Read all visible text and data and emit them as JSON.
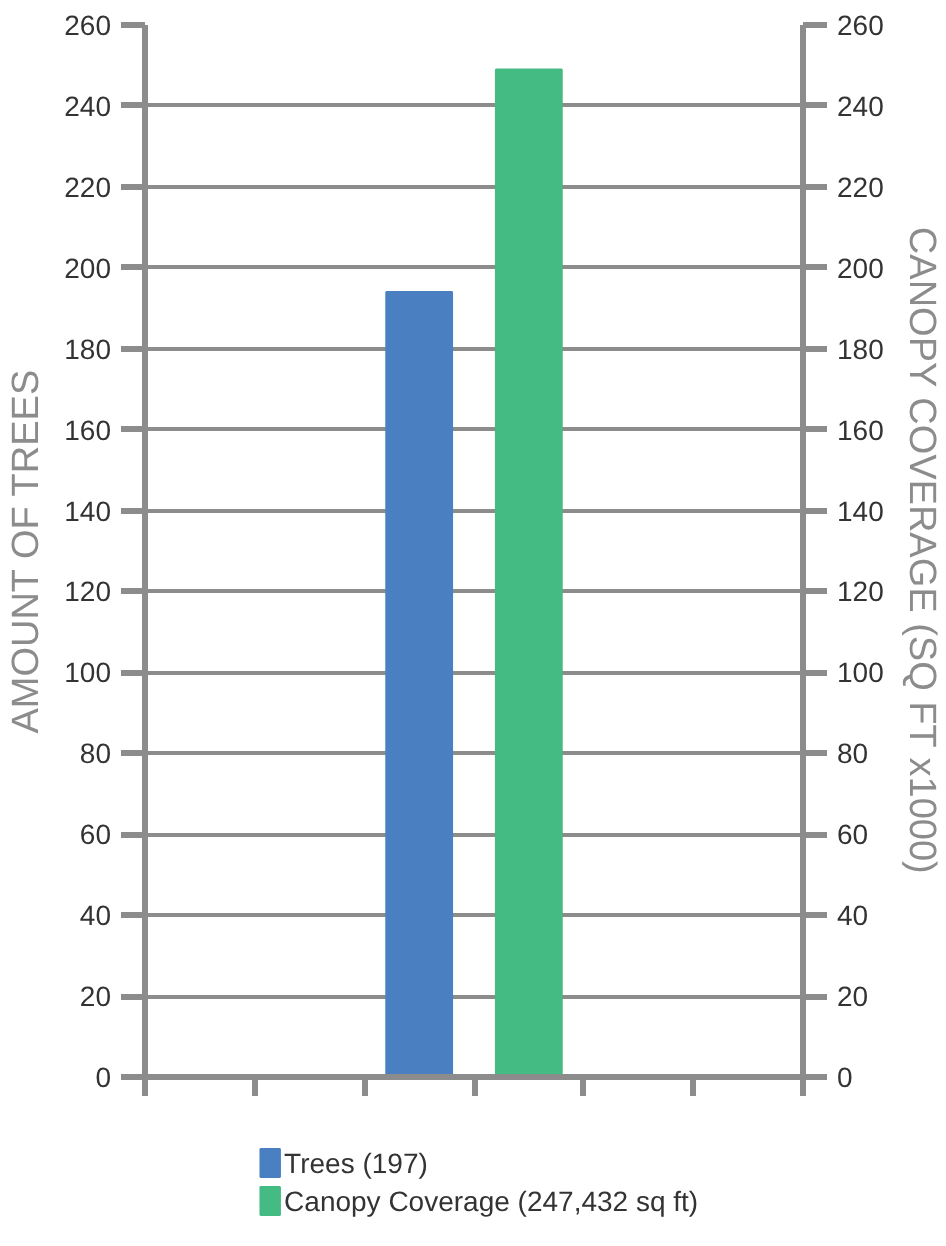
{
  "chart_data": {
    "type": "bar",
    "ylabel": "AMOUNT OF TREES",
    "y2label": "CANOPY COVERAGE (SQ FT x1000)",
    "categories": [
      null,
      null,
      null,
      null,
      null,
      null
    ],
    "series": [
      {
        "name": "Trees (197)",
        "color": "#4a80c2",
        "values": [
          null,
          null,
          194,
          null,
          null,
          null
        ]
      },
      {
        "name": "Canopy Coverage (247,432 sq ft)",
        "color": "#44bb82",
        "values": [
          null,
          null,
          null,
          249,
          null,
          null
        ],
        "axis": "y2"
      }
    ],
    "ylim": [
      0,
      260
    ],
    "yticks": [
      0,
      20,
      40,
      60,
      80,
      100,
      120,
      140,
      160,
      180,
      200,
      220,
      240,
      260
    ],
    "y2lim": [
      0,
      260
    ],
    "y2ticks": [
      0,
      20,
      40,
      60,
      80,
      100,
      120,
      140,
      160,
      180,
      200,
      220,
      240,
      260
    ],
    "grid": "y",
    "legend": "bottom",
    "tick_labels": "y"
  }
}
